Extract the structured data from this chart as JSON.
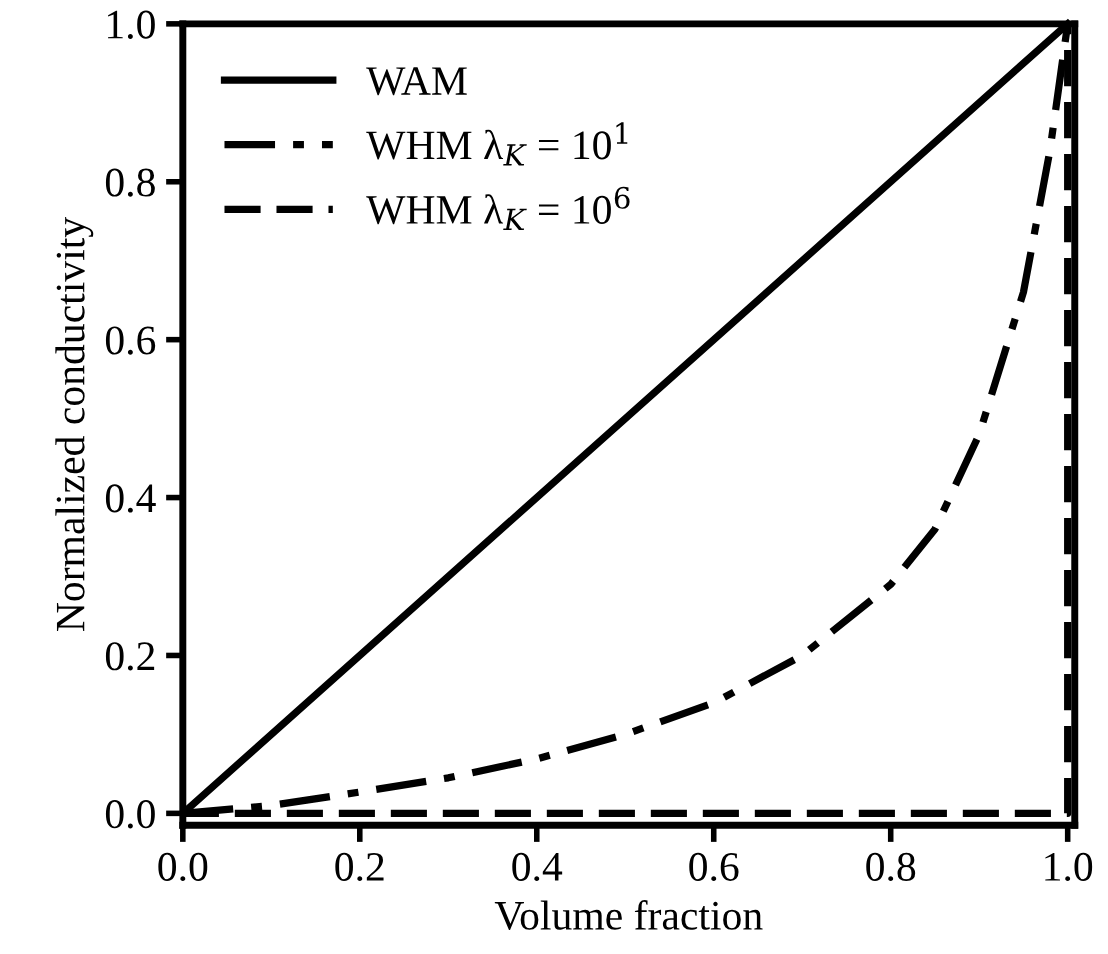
{
  "chart_data": {
    "type": "line",
    "xlabel": "Volume fraction",
    "ylabel": "Normalized conductivity",
    "xlim": [
      0,
      1.008
    ],
    "ylim": [
      -0.015,
      1
    ],
    "xticks": [
      {
        "value": 0,
        "label": "0.0"
      },
      {
        "value": 0.2,
        "label": "0.2"
      },
      {
        "value": 0.4,
        "label": "0.4"
      },
      {
        "value": 0.6,
        "label": "0.6"
      },
      {
        "value": 0.8,
        "label": "0.8"
      },
      {
        "value": 1,
        "label": "1.0"
      }
    ],
    "yticks": [
      {
        "value": 0,
        "label": "0.0"
      },
      {
        "value": 0.2,
        "label": "0.2"
      },
      {
        "value": 0.4,
        "label": "0.4"
      },
      {
        "value": 0.6,
        "label": "0.6"
      },
      {
        "value": 0.8,
        "label": "0.8"
      },
      {
        "value": 1,
        "label": "1.0"
      }
    ],
    "grid": false,
    "legend": "top left",
    "marker": "none",
    "series": [
      {
        "name": "WAM",
        "color": "#000000",
        "line_style": "solid",
        "x": [
          0,
          1
        ],
        "values": [
          0,
          1
        ]
      },
      {
        "name": "WHM λ$_{K}$ = 10$^{1}$",
        "color": "#000000",
        "line_style": "dashdot",
        "x": [
          0,
          0.1,
          0.2,
          0.3,
          0.4,
          0.5,
          0.6,
          0.7,
          0.8,
          0.85,
          0.9,
          0.95,
          0.98,
          1.0
        ],
        "values": [
          0,
          0.01,
          0.027,
          0.045,
          0.069,
          0.1,
          0.14,
          0.2,
          0.29,
          0.36,
          0.48,
          0.66,
          0.84,
          1.0
        ]
      },
      {
        "name": "WHM λ$_{K}$ = 10$^{6}$",
        "color": "#000000",
        "line_style": "dashed",
        "x": [
          0,
          1,
          1
        ],
        "values": [
          0,
          0,
          1
        ]
      }
    ]
  }
}
